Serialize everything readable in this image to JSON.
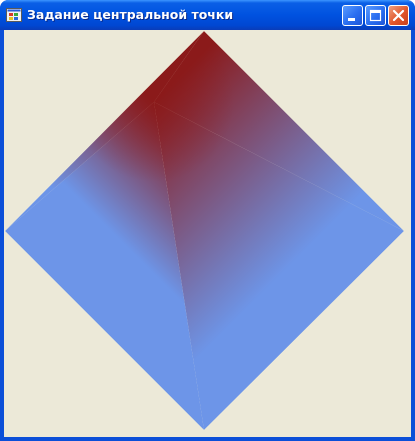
{
  "window": {
    "title": "Задание центральной точки",
    "controls": {
      "minimize": "minimize-icon",
      "maximize": "maximize-icon",
      "close": "close-icon"
    }
  },
  "canvas": {
    "background_color": "#ece9d8",
    "shape": "diamond",
    "edge_color": "#6d95e8",
    "center_color": "#8b1a1a"
  }
}
